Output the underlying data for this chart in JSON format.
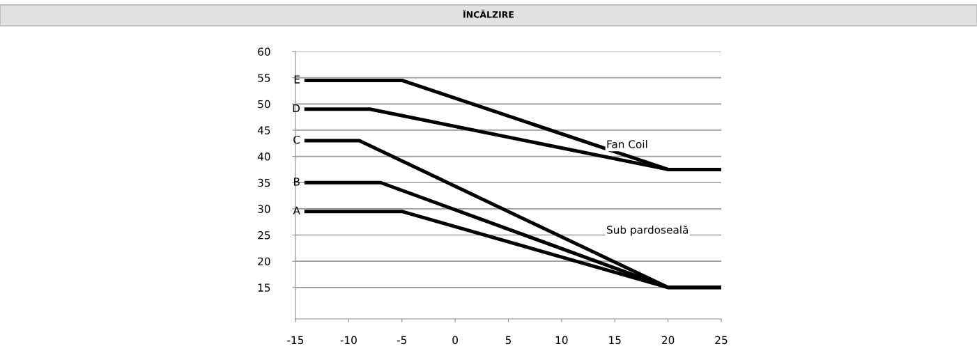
{
  "chart_data": {
    "type": "line",
    "title": "ÎNCĂLZIRE",
    "series": [
      {
        "name": "A",
        "color": "#000000",
        "x": [
          -14,
          -5,
          20,
          25
        ],
        "values": [
          29.5,
          29.5,
          15,
          15
        ]
      },
      {
        "name": "B",
        "color": "#000000",
        "x": [
          -14,
          -7,
          20,
          25
        ],
        "values": [
          35,
          35,
          15,
          15
        ]
      },
      {
        "name": "C",
        "color": "#000000",
        "x": [
          -14,
          -9,
          20,
          25
        ],
        "values": [
          43,
          43,
          15,
          15
        ]
      },
      {
        "name": "D",
        "color": "#000000",
        "x": [
          -14,
          -8,
          20,
          25
        ],
        "values": [
          49,
          49,
          37.5,
          37.5
        ]
      },
      {
        "name": "E",
        "color": "#000000",
        "x": [
          -14,
          -5,
          20,
          25
        ],
        "values": [
          54.5,
          54.5,
          37.5,
          37.5
        ]
      }
    ],
    "annotations": [
      "Fan Coil",
      "Sub pardoseală"
    ],
    "xlim": [
      -15,
      25
    ],
    "xticks": [
      -15,
      -10,
      -5,
      0,
      5,
      10,
      15,
      20,
      25
    ],
    "ylim": [
      9,
      60
    ],
    "yticks": [
      15,
      20,
      25,
      30,
      35,
      40,
      45,
      50,
      55,
      60
    ],
    "grid": "y",
    "legend": false,
    "marker": "none",
    "line_style": "solid"
  }
}
